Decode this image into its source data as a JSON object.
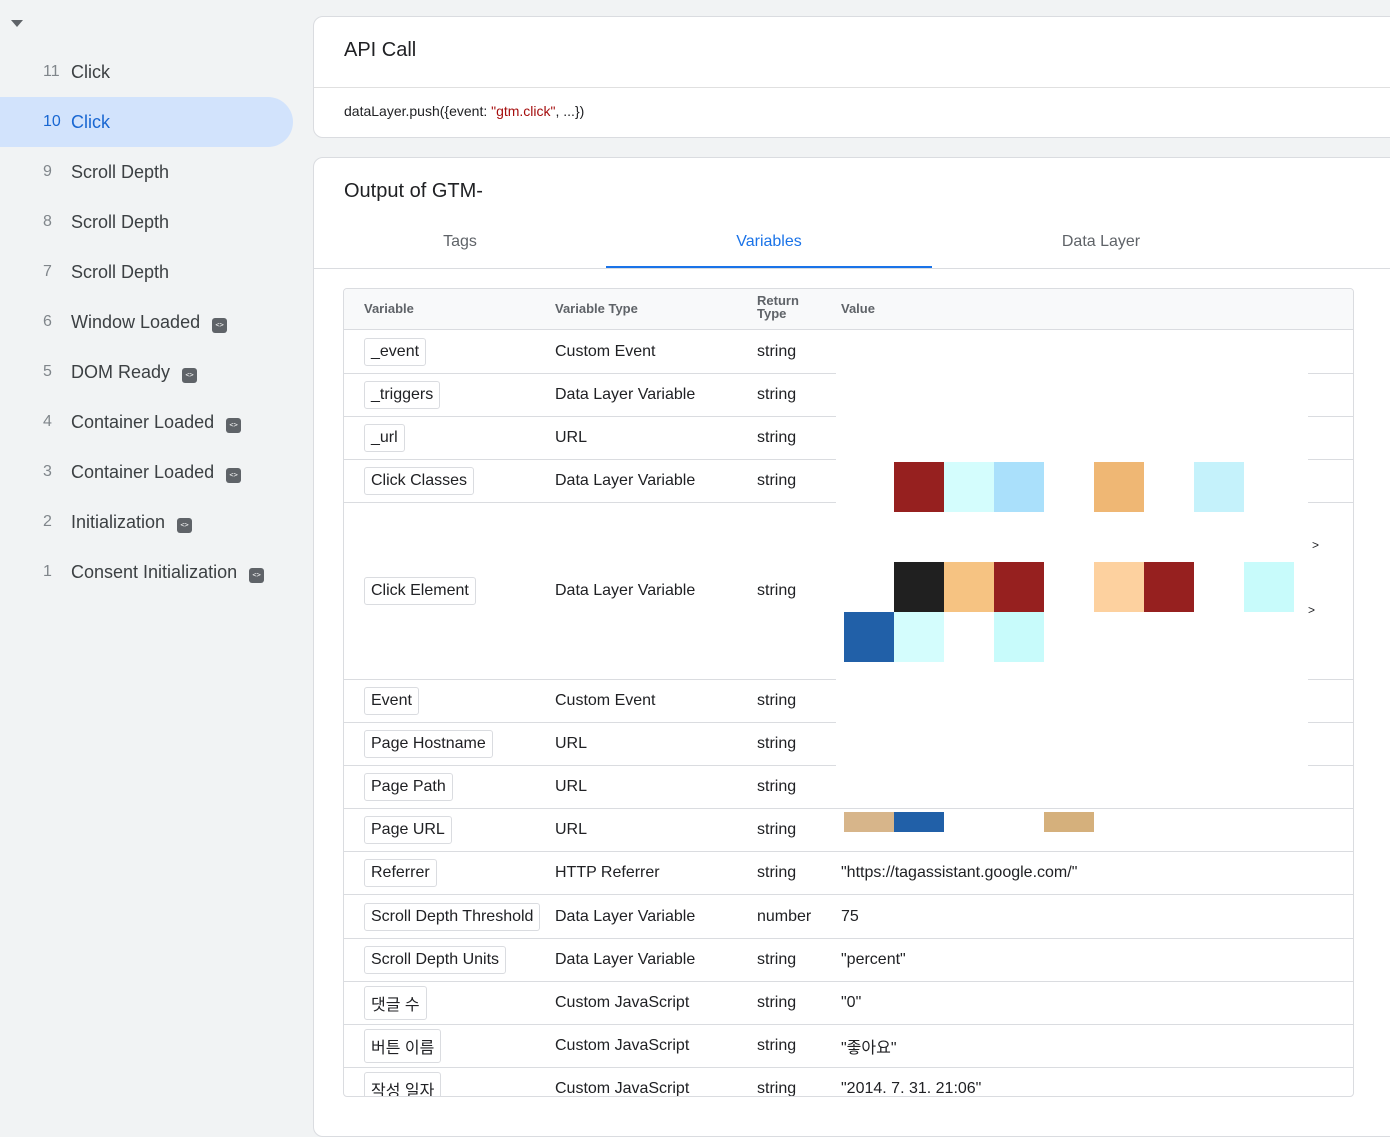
{
  "sidebar": {
    "events": [
      {
        "num": "11",
        "name": "Click",
        "active": false,
        "code": false
      },
      {
        "num": "10",
        "name": "Click",
        "active": true,
        "code": false
      },
      {
        "num": "9",
        "name": "Scroll Depth",
        "active": false,
        "code": false
      },
      {
        "num": "8",
        "name": "Scroll Depth",
        "active": false,
        "code": false
      },
      {
        "num": "7",
        "name": "Scroll Depth",
        "active": false,
        "code": false
      },
      {
        "num": "6",
        "name": "Window Loaded",
        "active": false,
        "code": true
      },
      {
        "num": "5",
        "name": "DOM Ready",
        "active": false,
        "code": true
      },
      {
        "num": "4",
        "name": "Container Loaded",
        "active": false,
        "code": true
      },
      {
        "num": "3",
        "name": "Container Loaded",
        "active": false,
        "code": true
      },
      {
        "num": "2",
        "name": "Initialization",
        "active": false,
        "code": true
      },
      {
        "num": "1",
        "name": "Consent Initialization",
        "active": false,
        "code": true
      }
    ]
  },
  "api": {
    "title": "API Call",
    "code_prefix": "dataLayer.push({event: ",
    "code_string": "\"gtm.click\"",
    "code_suffix": ", ...})"
  },
  "output": {
    "title": "Output of GTM-",
    "tabs": [
      "Tags",
      "Variables",
      "Data Layer"
    ],
    "active_tab": "Variables"
  },
  "table": {
    "headers": {
      "variable": "Variable",
      "type": "Variable Type",
      "return_1": "Return",
      "return_2": "Type",
      "value": "Value"
    },
    "rows": [
      {
        "variable": "_event",
        "type": "Custom Event",
        "return": "string",
        "value": ""
      },
      {
        "variable": "_triggers",
        "type": "Data Layer Variable",
        "return": "string",
        "value": ""
      },
      {
        "variable": "_url",
        "type": "URL",
        "return": "string",
        "value": ""
      },
      {
        "variable": "Click Classes",
        "type": "Data Layer Variable",
        "return": "string",
        "value": ""
      },
      {
        "variable": "Click Element",
        "type": "Data Layer Variable",
        "return": "string",
        "value": ""
      },
      {
        "variable": "Event",
        "type": "Custom Event",
        "return": "string",
        "value": ""
      },
      {
        "variable": "Page Hostname",
        "type": "URL",
        "return": "string",
        "value": ""
      },
      {
        "variable": "Page Path",
        "type": "URL",
        "return": "string",
        "value": ""
      },
      {
        "variable": "Page URL",
        "type": "URL",
        "return": "string",
        "value": ""
      },
      {
        "variable": "Referrer",
        "type": "HTTP Referrer",
        "return": "string",
        "value": "\"https://tagassistant.google.com/\""
      },
      {
        "variable": "Scroll Depth Threshold",
        "type": "Data Layer Variable",
        "return": "number",
        "value": "75"
      },
      {
        "variable": "Scroll Depth Units",
        "type": "Data Layer Variable",
        "return": "string",
        "value": "\"percent\""
      },
      {
        "variable": "댓글 수",
        "type": "Custom JavaScript",
        "return": "string",
        "value": "\"0\""
      },
      {
        "variable": "버튼 이름",
        "type": "Custom JavaScript",
        "return": "string",
        "value": "\"좋아요\""
      },
      {
        "variable": "작성 일자",
        "type": "Custom JavaScript",
        "return": "string",
        "value": "\"2014. 7. 31. 21:06\""
      }
    ],
    "click_element_markers": [
      ">",
      ">"
    ]
  },
  "colors": {
    "accent": "#1a73e8",
    "active_bg": "#d2e3fc",
    "string_literal": "#a50e0e"
  },
  "icons": {
    "collapse": "caret-down-icon",
    "code_badge": "code-icon"
  }
}
